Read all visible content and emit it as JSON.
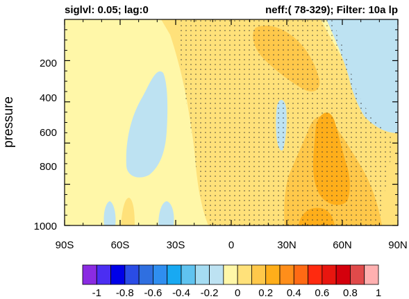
{
  "chart_data": {
    "type": "heatmap",
    "title_left": "siglvl: 0.05; lag:0",
    "title_right": "neff:( 78-329); Filter: 10a lp",
    "xlabel": "",
    "ylabel": "pressure",
    "x_range": [
      -90,
      90
    ],
    "y_range": [
      0,
      1000
    ],
    "y_axis": "pressure, inverted (1000 at bottom)",
    "x_ticks": [
      {
        "value": -90,
        "label": "90S"
      },
      {
        "value": -60,
        "label": "60S"
      },
      {
        "value": -30,
        "label": "30S"
      },
      {
        "value": 0,
        "label": "0"
      },
      {
        "value": 30,
        "label": "30N"
      },
      {
        "value": 60,
        "label": "60N"
      },
      {
        "value": 90,
        "label": "90N"
      }
    ],
    "y_ticks": [
      {
        "value": 200,
        "label": "200"
      },
      {
        "value": 400,
        "label": "400"
      },
      {
        "value": 600,
        "label": "600"
      },
      {
        "value": 800,
        "label": "800"
      },
      {
        "value": 1000,
        "label": "1000"
      }
    ],
    "stippling": "significant at siglvl 0.05, roughly from 30S to 85N",
    "colorbar": {
      "levels": [
        -1,
        -0.9,
        -0.8,
        -0.7,
        -0.6,
        -0.5,
        -0.4,
        -0.3,
        -0.2,
        -0.1,
        0,
        0.1,
        0.2,
        0.3,
        0.4,
        0.5,
        0.6,
        0.7,
        0.8,
        0.9,
        1
      ],
      "labels": [
        {
          "value": -1,
          "label": "-1"
        },
        {
          "value": -0.8,
          "label": "-0.8"
        },
        {
          "value": -0.6,
          "label": "-0.6"
        },
        {
          "value": -0.4,
          "label": "-0.4"
        },
        {
          "value": -0.2,
          "label": "-0.2"
        },
        {
          "value": 0,
          "label": "0"
        },
        {
          "value": 0.2,
          "label": "0.2"
        },
        {
          "value": 0.4,
          "label": "0.4"
        },
        {
          "value": 0.6,
          "label": "0.6"
        },
        {
          "value": 0.8,
          "label": "0.8"
        },
        {
          "value": 1,
          "label": "1"
        }
      ],
      "colors": [
        "#8a2be2",
        "#4b2ef2",
        "#0000e8",
        "#2a4ce6",
        "#2f6fe0",
        "#2f8ef0",
        "#18a9f2",
        "#5fc3f0",
        "#a5dcf2",
        "#bde2f2",
        "#fff7a8",
        "#ffe17a",
        "#ffc84a",
        "#ffae1a",
        "#ff8e1a",
        "#ff6a14",
        "#ff2a0f",
        "#e8160f",
        "#d4000c",
        "#e04a4a",
        "#ffb0b0"
      ]
    },
    "fill_colors": {
      "neg_0_1": "#bde2f2",
      "pos_0_1": "#fff7a8",
      "pos_0_2": "#ffe17a",
      "pos_0_3": "#ffc84a",
      "pos_0_4": "#ffae1a",
      "stipple": "#333333"
    }
  }
}
